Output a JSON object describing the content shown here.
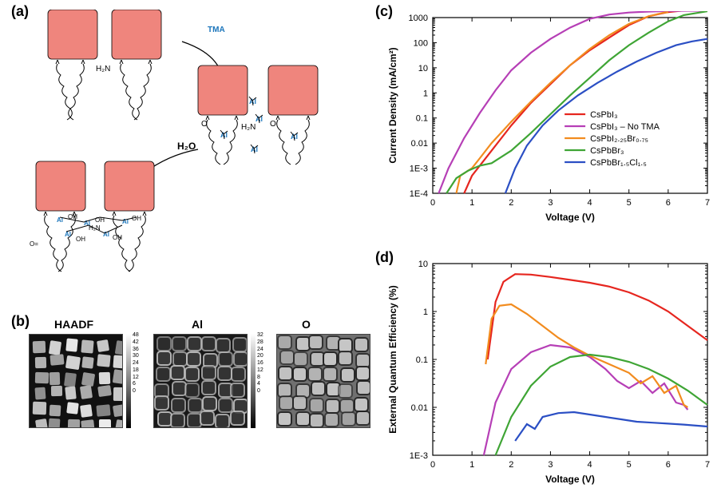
{
  "panel_a": {
    "label": "(a)",
    "reagent1": "TMA",
    "reagent2": "H₂O",
    "molecule_labels": {
      "al": "Al",
      "oh": "OH",
      "nh2": "H₂N",
      "o": "O"
    },
    "cube_color": "#ef857d"
  },
  "panel_b": {
    "label": "(b)",
    "micrographs": [
      {
        "title": "HAADF",
        "cb_max": 48,
        "cb_ticks": [
          48,
          42,
          36,
          30,
          24,
          18,
          12,
          6,
          0
        ]
      },
      {
        "title": "Al",
        "cb_max": 32,
        "cb_ticks": [
          32,
          28,
          24,
          20,
          16,
          12,
          8,
          4,
          0
        ]
      },
      {
        "title": "O",
        "cb_max": 32,
        "cb_ticks": [
          0
        ]
      }
    ],
    "scalebar_label": "30 nm"
  },
  "chart_c": {
    "label": "(c)",
    "ylabel": "Current Density (mA/cm²)",
    "xlabel": "Voltage (V)",
    "xlim": [
      0,
      7
    ],
    "xtick_step": 1,
    "ylim_exp": [
      -4,
      3
    ],
    "ytick_labels": [
      "1E-4",
      "1E-3",
      "0.01",
      "0.1",
      "1",
      "10",
      "100",
      "1000"
    ],
    "background_color": "#ffffff",
    "frame_color": "#000000",
    "legend": [
      {
        "name": "CsPbI₃",
        "color": "#e6261f"
      },
      {
        "name": "CsPbI₃ – No TMA",
        "color": "#b63fb6"
      },
      {
        "name": "CsPbI₂.₂₅Br₀.₇₅",
        "color": "#f28c1f"
      },
      {
        "name": "CsPbBr₃",
        "color": "#3fa535"
      },
      {
        "name": "CsPbBr₁.₅Cl₁.₅",
        "color": "#2b4fc4"
      }
    ],
    "series": {
      "CsPbI3": [
        [
          0.8,
          -4
        ],
        [
          1.0,
          -3.3
        ],
        [
          1.5,
          -2.3
        ],
        [
          2.0,
          -1.3
        ],
        [
          2.5,
          -0.4
        ],
        [
          3.0,
          0.35
        ],
        [
          3.5,
          1.1
        ],
        [
          4.0,
          1.7
        ],
        [
          4.5,
          2.2
        ],
        [
          5.0,
          2.7
        ],
        [
          5.5,
          3.05
        ],
        [
          6.0,
          3.22
        ],
        [
          6.5,
          3.3
        ],
        [
          7.0,
          3.32
        ]
      ],
      "CsPbI3_NoTMA": [
        [
          0.15,
          -4
        ],
        [
          0.4,
          -3.0
        ],
        [
          0.8,
          -1.8
        ],
        [
          1.2,
          -0.8
        ],
        [
          1.6,
          0.1
        ],
        [
          2.0,
          0.9
        ],
        [
          2.5,
          1.6
        ],
        [
          3.0,
          2.15
        ],
        [
          3.5,
          2.6
        ],
        [
          4.0,
          2.95
        ],
        [
          4.5,
          3.12
        ],
        [
          5.0,
          3.2
        ],
        [
          5.5,
          3.24
        ],
        [
          6.0,
          3.26
        ],
        [
          6.5,
          3.27
        ],
        [
          7.0,
          3.27
        ]
      ],
      "CsPbI225Br075": [
        [
          0.6,
          -4
        ],
        [
          0.7,
          -3.3
        ],
        [
          0.8,
          -3.2
        ],
        [
          1.0,
          -3.0
        ],
        [
          1.2,
          -2.6
        ],
        [
          1.5,
          -2.0
        ],
        [
          2.0,
          -1.15
        ],
        [
          2.5,
          -0.35
        ],
        [
          3.0,
          0.4
        ],
        [
          3.5,
          1.1
        ],
        [
          4.0,
          1.75
        ],
        [
          4.5,
          2.3
        ],
        [
          5.0,
          2.75
        ],
        [
          5.5,
          3.05
        ],
        [
          5.9,
          3.2
        ],
        [
          6.0,
          3.21
        ]
      ],
      "CsPbBr3": [
        [
          0.35,
          -4
        ],
        [
          0.6,
          -3.4
        ],
        [
          0.9,
          -3.1
        ],
        [
          1.2,
          -2.9
        ],
        [
          1.5,
          -2.8
        ],
        [
          2.0,
          -2.3
        ],
        [
          2.5,
          -1.6
        ],
        [
          3.0,
          -0.85
        ],
        [
          3.5,
          -0.1
        ],
        [
          4.0,
          0.6
        ],
        [
          4.5,
          1.3
        ],
        [
          5.0,
          1.9
        ],
        [
          5.5,
          2.4
        ],
        [
          6.0,
          2.85
        ],
        [
          6.4,
          3.1
        ],
        [
          7.0,
          3.25
        ]
      ],
      "CsPbBr15Cl15": [
        [
          1.85,
          -4
        ],
        [
          2.1,
          -3.0
        ],
        [
          2.4,
          -2.1
        ],
        [
          2.8,
          -1.3
        ],
        [
          3.2,
          -0.7
        ],
        [
          3.7,
          -0.1
        ],
        [
          4.2,
          0.4
        ],
        [
          4.7,
          0.85
        ],
        [
          5.2,
          1.25
        ],
        [
          5.7,
          1.6
        ],
        [
          6.2,
          1.9
        ],
        [
          6.6,
          2.05
        ],
        [
          7.0,
          2.15
        ]
      ]
    }
  },
  "chart_d": {
    "label": "(d)",
    "ylabel": "External Quantum Efficiency (%)",
    "xlabel": "Voltage (V)",
    "xlim": [
      0,
      7
    ],
    "xtick_step": 1,
    "ylim_exp": [
      -3,
      1
    ],
    "ytick_labels": [
      "1E-3",
      "0.01",
      "0.1",
      "1",
      "10"
    ],
    "series": {
      "CsPbI3": [
        [
          1.4,
          -1.0
        ],
        [
          1.6,
          0.2
        ],
        [
          1.8,
          0.62
        ],
        [
          2.1,
          0.78
        ],
        [
          2.5,
          0.77
        ],
        [
          3.0,
          0.72
        ],
        [
          3.5,
          0.66
        ],
        [
          4.0,
          0.6
        ],
        [
          4.5,
          0.52
        ],
        [
          5.0,
          0.4
        ],
        [
          5.5,
          0.23
        ],
        [
          6.0,
          0.0
        ],
        [
          6.5,
          -0.3
        ],
        [
          7.0,
          -0.6
        ]
      ],
      "CsPbI3_NoTMA": [
        [
          1.3,
          -3.0
        ],
        [
          1.6,
          -1.9
        ],
        [
          2.0,
          -1.2
        ],
        [
          2.5,
          -0.85
        ],
        [
          3.0,
          -0.7
        ],
        [
          3.5,
          -0.75
        ],
        [
          4.0,
          -0.95
        ],
        [
          4.4,
          -1.2
        ],
        [
          4.7,
          -1.45
        ],
        [
          5.0,
          -1.6
        ],
        [
          5.3,
          -1.45
        ],
        [
          5.6,
          -1.7
        ],
        [
          5.9,
          -1.5
        ],
        [
          6.2,
          -1.9
        ],
        [
          6.4,
          -1.95
        ],
        [
          6.5,
          -2.05
        ]
      ],
      "CsPbI225Br075": [
        [
          1.35,
          -1.1
        ],
        [
          1.5,
          -0.15
        ],
        [
          1.7,
          0.12
        ],
        [
          2.0,
          0.15
        ],
        [
          2.4,
          -0.05
        ],
        [
          2.8,
          -0.3
        ],
        [
          3.2,
          -0.55
        ],
        [
          3.6,
          -0.75
        ],
        [
          4.0,
          -0.92
        ],
        [
          4.5,
          -1.1
        ],
        [
          5.0,
          -1.28
        ],
        [
          5.3,
          -1.5
        ],
        [
          5.6,
          -1.35
        ],
        [
          5.9,
          -1.7
        ],
        [
          6.2,
          -1.55
        ],
        [
          6.4,
          -1.95
        ],
        [
          6.5,
          -2.0
        ]
      ],
      "CsPbBr3": [
        [
          1.6,
          -3.0
        ],
        [
          2.0,
          -2.2
        ],
        [
          2.5,
          -1.55
        ],
        [
          3.0,
          -1.15
        ],
        [
          3.5,
          -0.95
        ],
        [
          4.0,
          -0.9
        ],
        [
          4.5,
          -0.95
        ],
        [
          5.0,
          -1.05
        ],
        [
          5.5,
          -1.2
        ],
        [
          6.0,
          -1.4
        ],
        [
          6.5,
          -1.65
        ],
        [
          7.0,
          -1.95
        ]
      ],
      "CsPbBr15Cl15": [
        [
          2.1,
          -2.7
        ],
        [
          2.4,
          -2.35
        ],
        [
          2.6,
          -2.45
        ],
        [
          2.8,
          -2.2
        ],
        [
          3.2,
          -2.12
        ],
        [
          3.6,
          -2.1
        ],
        [
          4.0,
          -2.15
        ],
        [
          4.4,
          -2.2
        ],
        [
          4.8,
          -2.25
        ],
        [
          5.2,
          -2.3
        ],
        [
          5.6,
          -2.32
        ],
        [
          6.0,
          -2.34
        ],
        [
          6.4,
          -2.36
        ],
        [
          7.0,
          -2.4
        ]
      ]
    }
  }
}
